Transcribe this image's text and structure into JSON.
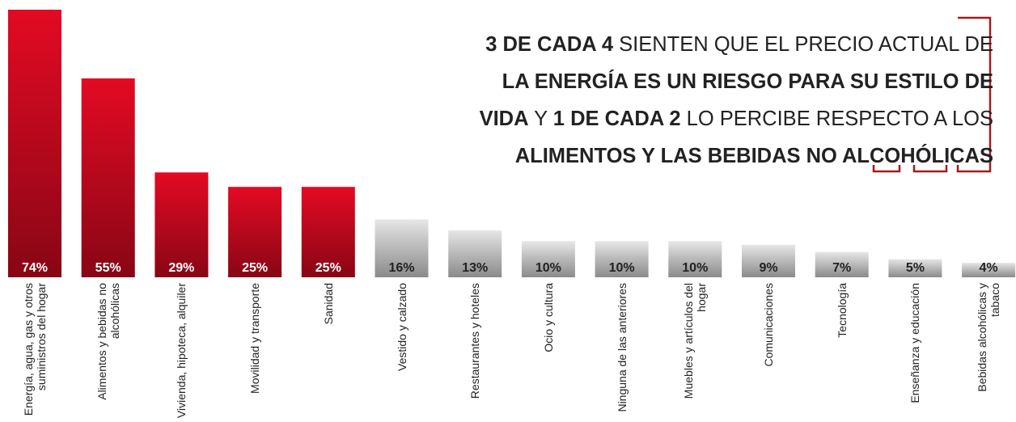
{
  "chart_data": {
    "type": "bar",
    "annotation": [
      [
        {
          "text": "3 DE CADA 4",
          "bold": true
        },
        {
          "text": " SIENTEN QUE EL PRECIO ACTUAL DE",
          "bold": false
        }
      ],
      [
        {
          "text": "LA ENERGÍA ES UN RIESGO PARA SU ESTILO DE",
          "bold": true
        }
      ],
      [
        {
          "text": "VIDA",
          "bold": true
        },
        {
          "text": " Y ",
          "bold": false
        },
        {
          "text": "1 DE CADA 2",
          "bold": true
        },
        {
          "text": " LO PERCIBE RESPECTO A LOS",
          "bold": false
        }
      ],
      [
        {
          "text": "ALIMENTOS Y LAS BEBIDAS NO ALCOHÓLICAS",
          "bold": true
        }
      ]
    ],
    "categories": [
      "Energía, agua, gas y otros suministros del hogar",
      "Alimentos y bebidas no alcohólicas",
      "Vivienda, hipoteca, alquiler",
      "Movilidad y transporte",
      "Sanidad",
      "Vestido y calzado",
      "Restaurantes y hoteles",
      "Ocio y cultura",
      "Ninguna de las anteriores",
      "Muebles y artículos del hogar",
      "Comunicaciones",
      "Tecnología",
      "Enseñanza y educación",
      "Bebidas alcohólicas y tabaco"
    ],
    "values": [
      74,
      55,
      29,
      25,
      25,
      16,
      13,
      10,
      10,
      10,
      9,
      7,
      5,
      4
    ],
    "value_labels": [
      "74%",
      "55%",
      "29%",
      "25%",
      "25%",
      "16%",
      "13%",
      "10%",
      "10%",
      "10%",
      "9%",
      "7%",
      "5%",
      "4%"
    ],
    "colors": [
      "#e30a23",
      "#e30a23",
      "#e30a23",
      "#e30a23",
      "#e30a23",
      "#e6e6e6",
      "#e6e6e6",
      "#e6e6e6",
      "#e6e6e6",
      "#e6e6e6",
      "#e6e6e6",
      "#e6e6e6",
      "#e6e6e6",
      "#e6e6e6"
    ],
    "value_label_colors": [
      "#ffffff",
      "#ffffff",
      "#ffffff",
      "#ffffff",
      "#ffffff",
      "#222222",
      "#222222",
      "#222222",
      "#222222",
      "#222222",
      "#222222",
      "#222222",
      "#222222",
      "#222222"
    ],
    "ylim": [
      0,
      74
    ]
  }
}
